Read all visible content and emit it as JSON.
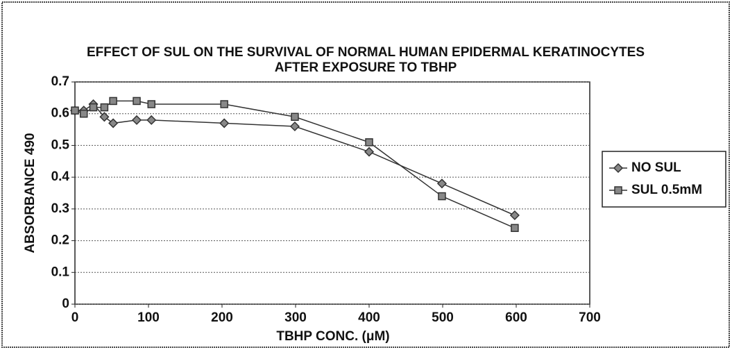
{
  "chart_data": {
    "type": "line",
    "title": [
      "EFFECT OF SUL ON THE SURVIVAL OF NORMAL HUMAN EPIDERMAL KERATINOCYTES",
      "AFTER EXPOSURE TO TBHP"
    ],
    "x_label": "TBHP CONC. (μM)",
    "y_label": "ABSORBANCE 490",
    "x": [
      0,
      12,
      25,
      40,
      52,
      84,
      104,
      203,
      299,
      400,
      499,
      598
    ],
    "series": [
      {
        "name": "NO SUL",
        "color": "#333333",
        "marker": "diamond",
        "values": [
          0.61,
          0.61,
          0.63,
          0.59,
          0.57,
          0.58,
          0.58,
          0.57,
          0.56,
          0.48,
          0.38,
          0.28
        ]
      },
      {
        "name": "SUL 0.5mM",
        "color": "#333333",
        "marker": "square",
        "values": [
          0.61,
          0.6,
          0.62,
          0.62,
          0.64,
          0.64,
          0.63,
          0.63,
          0.59,
          0.51,
          0.34,
          0.24
        ]
      }
    ],
    "xlim": [
      0,
      700
    ],
    "xticks": [
      0,
      100,
      200,
      300,
      400,
      500,
      600,
      700
    ],
    "ylim": [
      0,
      0.7
    ],
    "yticks": [
      0,
      0.1,
      0.2,
      0.3,
      0.4,
      0.5,
      0.6,
      0.7
    ],
    "grid": true,
    "legend": "right"
  }
}
